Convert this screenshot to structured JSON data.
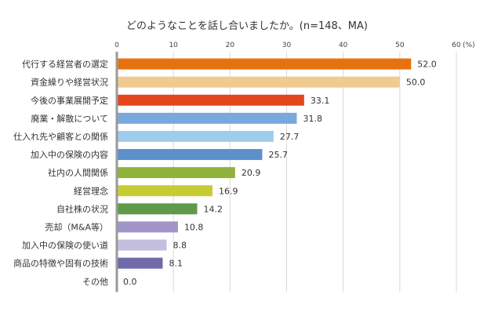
{
  "chart_data": {
    "type": "bar",
    "orientation": "horizontal",
    "title": "どのようなことを話し合いましたか。(n=148、MA)",
    "unit_label": "(%)",
    "xlim": [
      0,
      60
    ],
    "xticks": [
      0,
      10,
      20,
      30,
      40,
      50,
      60
    ],
    "grid": true,
    "categories": [
      "代行する経営者の選定",
      "資金繰りや経営状況",
      "今後の事業展開予定",
      "廃業・解散について",
      "仕入れ先や顧客との関係",
      "加入中の保険の内容",
      "社内の人間関係",
      "経営理念",
      "自社株の状況",
      "売却（M&A等）",
      "加入中の保険の使い道",
      "商品の特徴や固有の技術",
      "その他"
    ],
    "values": [
      52.0,
      50.0,
      33.1,
      31.8,
      27.7,
      25.7,
      20.9,
      16.9,
      14.2,
      10.8,
      8.8,
      8.1,
      0.0
    ],
    "value_labels": [
      "52.0",
      "50.0",
      "33.1",
      "31.8",
      "27.7",
      "25.7",
      "20.9",
      "16.9",
      "14.2",
      "10.8",
      "8.8",
      "8.1",
      "0.0"
    ],
    "colors": [
      "#e8710f",
      "#f0cb8f",
      "#e4461b",
      "#7aa8dd",
      "#9fccec",
      "#5d8fcb",
      "#90b13b",
      "#c6cd33",
      "#5e9a4a",
      "#a094c8",
      "#c5bfdf",
      "#6f6aa8",
      "#888888"
    ]
  }
}
